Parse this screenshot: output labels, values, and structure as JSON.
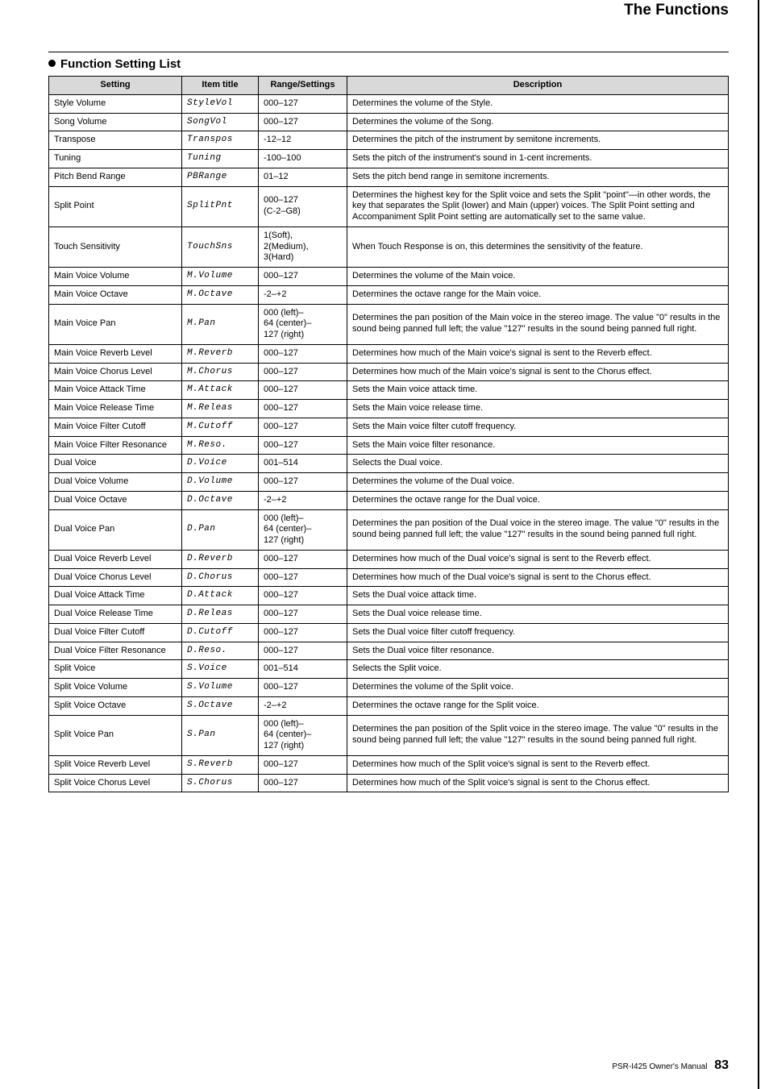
{
  "header": {
    "title": "The Functions"
  },
  "section": {
    "title": "Function Setting List"
  },
  "table": {
    "columns": [
      "Setting",
      "Item title",
      "Range/Settings",
      "Description"
    ],
    "rows": [
      {
        "setting": "Style Volume",
        "item": "StyleVol",
        "range": "000–127",
        "desc": "Determines the volume of the Style."
      },
      {
        "setting": "Song Volume",
        "item": "SongVol",
        "range": "000–127",
        "desc": "Determines the volume of the Song."
      },
      {
        "setting": "Transpose",
        "item": "Transpos",
        "range": "-12–12",
        "desc": "Determines the pitch of the instrument by semitone increments."
      },
      {
        "setting": "Tuning",
        "item": "Tuning",
        "range": "-100–100",
        "desc": "Sets the pitch of the instrument's sound in 1-cent increments."
      },
      {
        "setting": "Pitch Bend Range",
        "item": "PBRange",
        "range": "01–12",
        "desc": "Sets the pitch bend range in semitone increments."
      },
      {
        "setting": "Split Point",
        "item": "SplitPnt",
        "range": "000–127\n(C-2–G8)",
        "desc": "Determines the highest key for the Split voice and sets the Split \"point\"—in other words, the key that separates the Split (lower) and Main (upper) voices. The Split Point setting and Accompaniment Split Point setting are automatically set to the same value."
      },
      {
        "setting": "Touch Sensitivity",
        "item": "TouchSns",
        "range": "1(Soft),\n2(Medium),\n3(Hard)",
        "desc": "When Touch Response is on, this determines the sensitivity of the feature."
      },
      {
        "setting": "Main Voice Volume",
        "item": "M.Volume",
        "range": "000–127",
        "desc": "Determines the volume of the Main voice."
      },
      {
        "setting": "Main Voice Octave",
        "item": "M.Octave",
        "range": "-2–+2",
        "desc": "Determines the octave range for the Main voice."
      },
      {
        "setting": "Main Voice Pan",
        "item": "M.Pan",
        "range": "000 (left)–\n64 (center)–\n127 (right)",
        "desc": "Determines the pan position of the Main voice in the stereo image. The value \"0\" results in the sound being panned full left; the value \"127\" results in the sound being panned full right."
      },
      {
        "setting": "Main Voice Reverb Level",
        "item": "M.Reverb",
        "range": "000–127",
        "desc": "Determines how much of the Main voice's signal is sent to the Reverb effect."
      },
      {
        "setting": "Main Voice Chorus Level",
        "item": "M.Chorus",
        "range": "000–127",
        "desc": "Determines how much of the Main voice's signal is sent to the Chorus effect."
      },
      {
        "setting": "Main Voice Attack Time",
        "item": "M.Attack",
        "range": "000–127",
        "desc": "Sets the Main voice attack time."
      },
      {
        "setting": "Main Voice Release Time",
        "item": "M.Releas",
        "range": "000–127",
        "desc": "Sets the Main voice release time."
      },
      {
        "setting": "Main Voice Filter Cutoff",
        "item": "M.Cutoff",
        "range": "000–127",
        "desc": "Sets the Main voice filter cutoff frequency."
      },
      {
        "setting": "Main Voice Filter Resonance",
        "item": "M.Reso.",
        "range": "000–127",
        "desc": "Sets the Main voice filter resonance."
      },
      {
        "setting": "Dual Voice",
        "item": "D.Voice",
        "range": "001–514",
        "desc": "Selects the Dual voice."
      },
      {
        "setting": "Dual Voice Volume",
        "item": "D.Volume",
        "range": "000–127",
        "desc": "Determines the volume of the Dual voice."
      },
      {
        "setting": "Dual Voice Octave",
        "item": "D.Octave",
        "range": "-2–+2",
        "desc": "Determines the octave range for the Dual voice."
      },
      {
        "setting": "Dual Voice Pan",
        "item": "D.Pan",
        "range": "000 (left)–\n64 (center)–\n127 (right)",
        "desc": "Determines the pan position of the Dual voice in the stereo image. The value \"0\" results in the sound being panned full left; the value \"127\" results in the sound being panned full right."
      },
      {
        "setting": "Dual Voice Reverb Level",
        "item": "D.Reverb",
        "range": "000–127",
        "desc": "Determines how much of the Dual voice's signal is sent to the Reverb effect."
      },
      {
        "setting": "Dual Voice Chorus Level",
        "item": "D.Chorus",
        "range": "000–127",
        "desc": "Determines how much of the Dual voice's signal is sent to the Chorus effect."
      },
      {
        "setting": "Dual Voice Attack Time",
        "item": "D.Attack",
        "range": "000–127",
        "desc": "Sets the Dual voice attack time."
      },
      {
        "setting": "Dual Voice Release Time",
        "item": "D.Releas",
        "range": "000–127",
        "desc": "Sets the Dual voice release time."
      },
      {
        "setting": "Dual Voice Filter Cutoff",
        "item": "D.Cutoff",
        "range": "000–127",
        "desc": "Sets the Dual voice filter cutoff frequency."
      },
      {
        "setting": "Dual Voice Filter Resonance",
        "item": "D.Reso.",
        "range": "000–127",
        "desc": "Sets the Dual voice filter resonance."
      },
      {
        "setting": "Split Voice",
        "item": "S.Voice",
        "range": "001–514",
        "desc": "Selects the Split voice."
      },
      {
        "setting": "Split Voice Volume",
        "item": "S.Volume",
        "range": "000–127",
        "desc": "Determines the volume of the Split voice."
      },
      {
        "setting": "Split Voice Octave",
        "item": "S.Octave",
        "range": "-2–+2",
        "desc": "Determines the octave range for the Split voice."
      },
      {
        "setting": "Split Voice Pan",
        "item": "S.Pan",
        "range": "000 (left)–\n64 (center)–\n127 (right)",
        "desc": "Determines the pan position of the Split voice in the stereo image. The value \"0\" results in the sound being panned full left; the value \"127\" results in the sound being panned full right."
      },
      {
        "setting": "Split Voice Reverb Level",
        "item": "S.Reverb",
        "range": "000–127",
        "desc": "Determines how much of the Split voice's signal is sent to the Reverb effect."
      },
      {
        "setting": "Split Voice Chorus Level",
        "item": "S.Chorus",
        "range": "000–127",
        "desc": "Determines how much of the Split voice's signal is sent to the Chorus effect."
      }
    ]
  },
  "footer": {
    "text": "PSR-I425  Owner's Manual",
    "page": "83"
  },
  "style": {
    "colors": {
      "header_bg": "#d9d9d9",
      "border": "#000000",
      "text": "#000000",
      "page_bg": "#ffffff"
    },
    "fonts": {
      "body_pt": 11,
      "header_pt": 19,
      "section_pt": 15,
      "lcd_family": "Courier New"
    }
  }
}
